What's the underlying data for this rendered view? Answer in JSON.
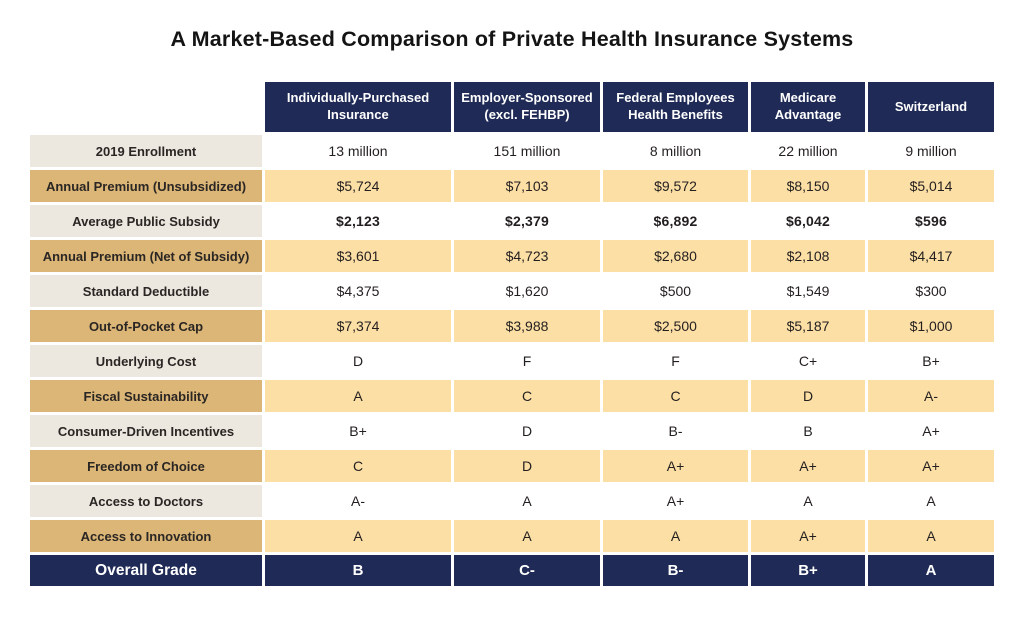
{
  "title": "A Market-Based Comparison of Private Health Insurance Systems",
  "colors": {
    "navy": "#1f2a56",
    "tan": "#dcb677",
    "beige": "#ece7df",
    "gold": "#fcdfa4",
    "ink": "#231f20"
  },
  "table": {
    "columns": [
      "Individually-Purchased\nInsurance",
      "Employer-Sponsored\n(excl. FEHBP)",
      "Federal Employees\nHealth Benefits",
      "Medicare\nAdvantage",
      "Switzerland"
    ],
    "rows": [
      {
        "label": "2019 Enrollment",
        "values": [
          "13 million",
          "151 million",
          "8 million",
          "22 million",
          "9 million"
        ],
        "variant": "light",
        "bold": false
      },
      {
        "label": "Annual Premium (Unsubsidized)",
        "values": [
          "$5,724",
          "$7,103",
          "$9,572",
          "$8,150",
          "$5,014"
        ],
        "variant": "gold",
        "bold": false
      },
      {
        "label": "Average Public Subsidy",
        "values": [
          "$2,123",
          "$2,379",
          "$6,892",
          "$6,042",
          "$596"
        ],
        "variant": "light",
        "bold": true
      },
      {
        "label": "Annual Premium (Net of Subsidy)",
        "values": [
          "$3,601",
          "$4,723",
          "$2,680",
          "$2,108",
          "$4,417"
        ],
        "variant": "gold",
        "bold": false
      },
      {
        "label": "Standard Deductible",
        "values": [
          "$4,375",
          "$1,620",
          "$500",
          "$1,549",
          "$300"
        ],
        "variant": "light",
        "bold": false
      },
      {
        "label": "Out-of-Pocket Cap",
        "values": [
          "$7,374",
          "$3,988",
          "$2,500",
          "$5,187",
          "$1,000"
        ],
        "variant": "gold",
        "bold": false
      },
      {
        "label": "Underlying Cost",
        "values": [
          "D",
          "F",
          "F",
          "C+",
          "B+"
        ],
        "variant": "light",
        "bold": false
      },
      {
        "label": "Fiscal Sustainability",
        "values": [
          "A",
          "C",
          "C",
          "D",
          "A-"
        ],
        "variant": "gold",
        "bold": false
      },
      {
        "label": "Consumer-Driven Incentives",
        "values": [
          "B+",
          "D",
          "B-",
          "B",
          "A+"
        ],
        "variant": "light",
        "bold": false
      },
      {
        "label": "Freedom of Choice",
        "values": [
          "C",
          "D",
          "A+",
          "A+",
          "A+"
        ],
        "variant": "gold",
        "bold": false
      },
      {
        "label": "Access to Doctors",
        "values": [
          "A-",
          "A",
          "A+",
          "A",
          "A"
        ],
        "variant": "light",
        "bold": false
      },
      {
        "label": "Access to Innovation",
        "values": [
          "A",
          "A",
          "A",
          "A+",
          "A"
        ],
        "variant": "gold",
        "bold": false
      }
    ],
    "footer": {
      "label": "Overall Grade",
      "values": [
        "B",
        "C-",
        "B-",
        "B+",
        "A"
      ]
    }
  },
  "chart_data": {
    "type": "table",
    "title": "A Market-Based Comparison of Private Health Insurance Systems",
    "columns": [
      "",
      "Individually-Purchased Insurance",
      "Employer-Sponsored (excl. FEHBP)",
      "Federal Employees Health Benefits",
      "Medicare Advantage",
      "Switzerland"
    ],
    "rows": [
      [
        "2019 Enrollment",
        "13 million",
        "151 million",
        "8 million",
        "22 million",
        "9 million"
      ],
      [
        "Annual Premium (Unsubsidized)",
        "$5,724",
        "$7,103",
        "$9,572",
        "$8,150",
        "$5,014"
      ],
      [
        "Average Public Subsidy",
        "$2,123",
        "$2,379",
        "$6,892",
        "$6,042",
        "$596"
      ],
      [
        "Annual Premium (Net of Subsidy)",
        "$3,601",
        "$4,723",
        "$2,680",
        "$2,108",
        "$4,417"
      ],
      [
        "Standard Deductible",
        "$4,375",
        "$1,620",
        "$500",
        "$1,549",
        "$300"
      ],
      [
        "Out-of-Pocket Cap",
        "$7,374",
        "$3,988",
        "$2,500",
        "$5,187",
        "$1,000"
      ],
      [
        "Underlying Cost",
        "D",
        "F",
        "F",
        "C+",
        "B+"
      ],
      [
        "Fiscal Sustainability",
        "A",
        "C",
        "C",
        "D",
        "A-"
      ],
      [
        "Consumer-Driven Incentives",
        "B+",
        "D",
        "B-",
        "B",
        "A+"
      ],
      [
        "Freedom of Choice",
        "C",
        "D",
        "A+",
        "A+",
        "A+"
      ],
      [
        "Access to Doctors",
        "A-",
        "A",
        "A+",
        "A",
        "A"
      ],
      [
        "Access to Innovation",
        "A",
        "A",
        "A",
        "A+",
        "A"
      ],
      [
        "Overall Grade",
        "B",
        "C-",
        "B-",
        "B+",
        "A"
      ]
    ],
    "layout": {
      "grid": false,
      "legend": "none",
      "row_label_column": true,
      "footer_row_highlighted": true
    }
  }
}
